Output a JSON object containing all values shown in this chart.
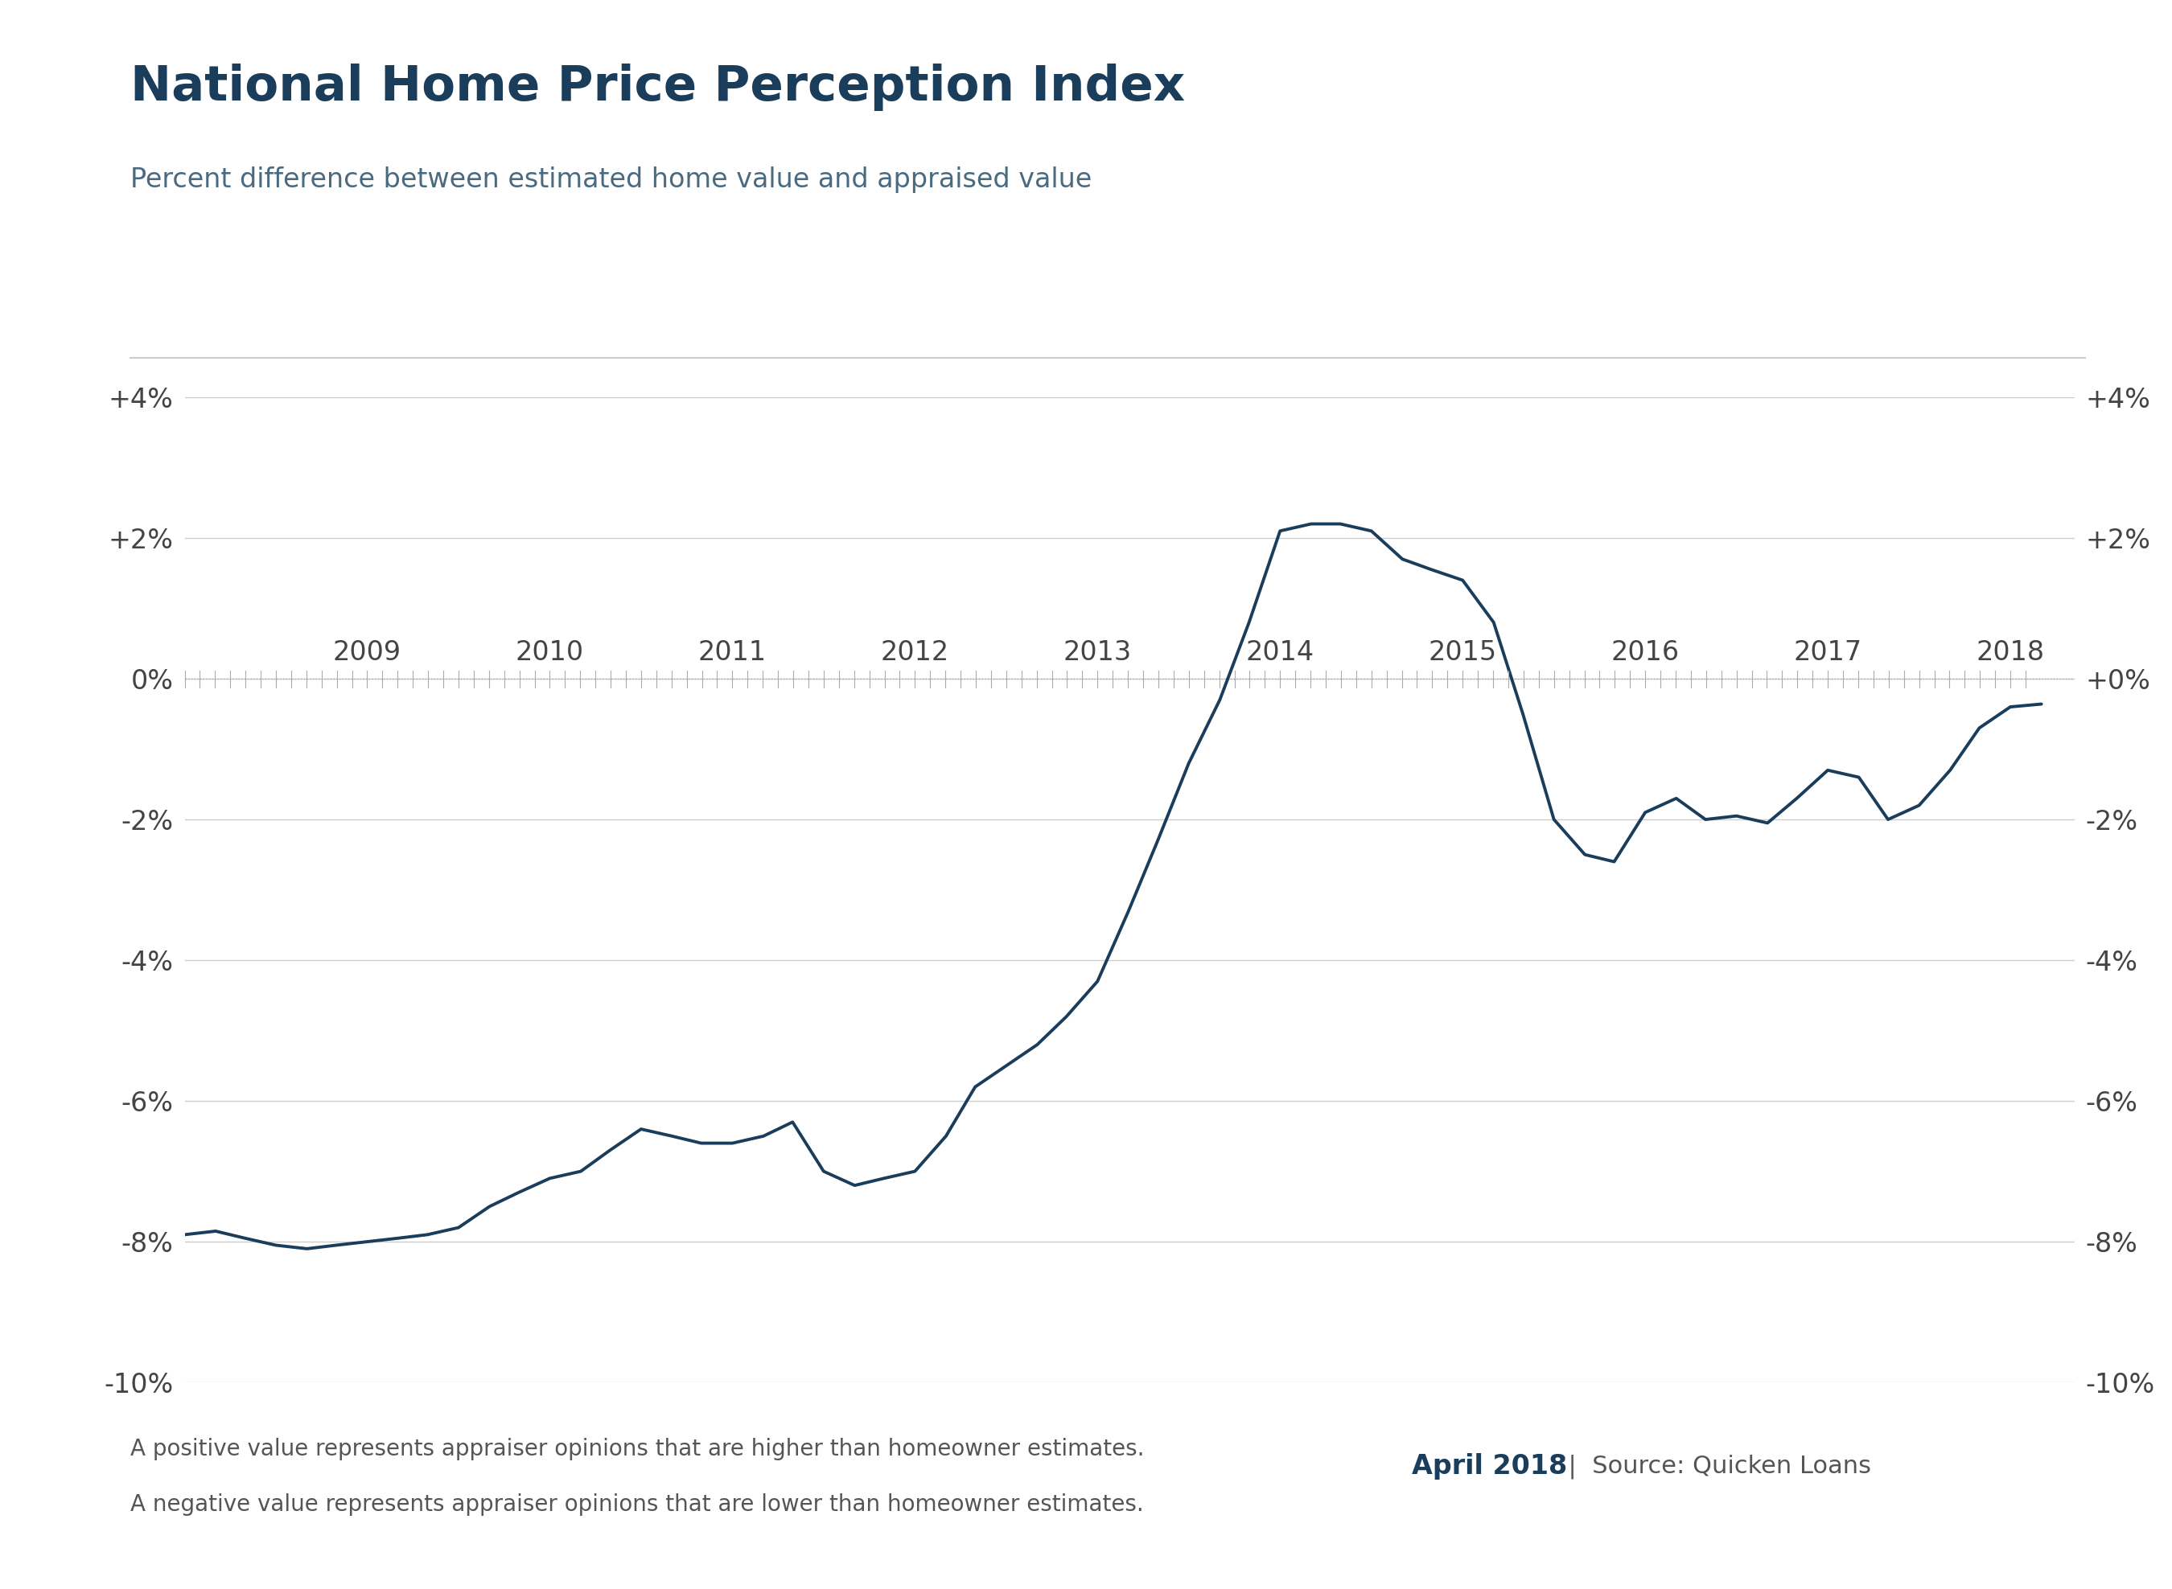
{
  "title": "National Home Price Perception Index",
  "subtitle": "Percent difference between estimated home value and appraised value",
  "line_color": "#1a3d5c",
  "background_color": "#ffffff",
  "title_color": "#1a3d5c",
  "subtitle_color": "#4a6a80",
  "footer_left_line1": "A positive value represents appraiser opinions that are higher than homeowner estimates.",
  "footer_left_line2": "A negative value represents appraiser opinions that are lower than homeowner estimates.",
  "footer_bold": "April 2018",
  "footer_source": "  |  Source: Quicken Loans",
  "ylim": [
    -10,
    4
  ],
  "yticks": [
    -10,
    -8,
    -6,
    -4,
    -2,
    0,
    2,
    4
  ],
  "ytick_labels_left": [
    "-10%",
    "-8%",
    "-6%",
    "-4%",
    "-2%",
    "0%",
    "+2%",
    "+4%"
  ],
  "ytick_labels_right": [
    "-10%",
    "-8%",
    "-6%",
    "-4%",
    "-2%",
    "+0%",
    "+2%",
    "+4%"
  ],
  "x_data": [
    2008.0,
    2008.17,
    2008.33,
    2008.5,
    2008.67,
    2008.83,
    2009.0,
    2009.17,
    2009.33,
    2009.5,
    2009.67,
    2009.83,
    2010.0,
    2010.17,
    2010.33,
    2010.5,
    2010.67,
    2010.83,
    2011.0,
    2011.17,
    2011.33,
    2011.5,
    2011.67,
    2011.83,
    2012.0,
    2012.17,
    2012.33,
    2012.5,
    2012.67,
    2012.83,
    2013.0,
    2013.17,
    2013.33,
    2013.5,
    2013.67,
    2013.83,
    2014.0,
    2014.17,
    2014.33,
    2014.5,
    2014.67,
    2014.83,
    2015.0,
    2015.17,
    2015.33,
    2015.5,
    2015.67,
    2015.83,
    2016.0,
    2016.17,
    2016.33,
    2016.5,
    2016.67,
    2016.83,
    2017.0,
    2017.17,
    2017.33,
    2017.5,
    2017.67,
    2017.83,
    2018.0,
    2018.17
  ],
  "y_data": [
    -7.9,
    -7.85,
    -7.95,
    -8.05,
    -8.1,
    -8.05,
    -8.0,
    -7.95,
    -7.9,
    -7.8,
    -7.5,
    -7.3,
    -7.1,
    -7.0,
    -6.7,
    -6.4,
    -6.5,
    -6.6,
    -6.6,
    -6.5,
    -6.3,
    -7.0,
    -7.2,
    -7.1,
    -7.0,
    -6.5,
    -5.8,
    -5.5,
    -5.2,
    -4.8,
    -4.3,
    -3.3,
    -2.3,
    -1.2,
    -0.3,
    0.8,
    2.1,
    2.2,
    2.2,
    2.1,
    1.7,
    1.55,
    1.4,
    0.8,
    -0.5,
    -2.0,
    -2.5,
    -2.6,
    -1.9,
    -1.7,
    -2.0,
    -1.95,
    -2.05,
    -1.7,
    -1.3,
    -1.4,
    -2.0,
    -1.8,
    -1.3,
    -0.7,
    -0.4,
    -0.36
  ],
  "xlim": [
    2008.0,
    2018.35
  ],
  "xtick_positions": [
    2009,
    2010,
    2011,
    2012,
    2013,
    2014,
    2015,
    2016,
    2017,
    2018
  ],
  "xtick_labels": [
    "2009",
    "2010",
    "2011",
    "2012",
    "2013",
    "2014",
    "2015",
    "2016",
    "2017",
    "2018"
  ]
}
